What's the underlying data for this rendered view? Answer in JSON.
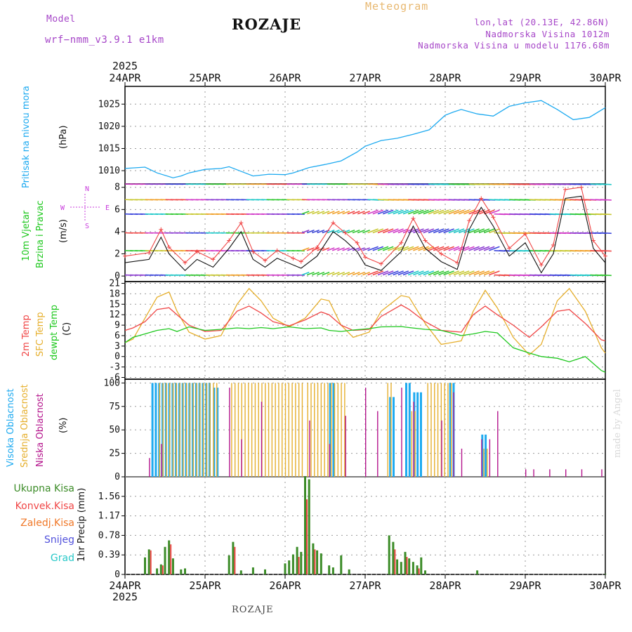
{
  "header": {
    "model_label": "Model",
    "model_name": "wrf−nmm_v3.9.1  e1km",
    "station": "ROZAJE",
    "meteogram": "Meteogram",
    "coords": "lon,lat (20.13E, 42.86N)",
    "elevation": "Nadmorska Visina 1012m",
    "model_elevation": "Nadmorska Visina u modelu 1176.68m",
    "year_top": "2025",
    "year_bottom": "2025",
    "footer": "ROZAJE",
    "credit": "made by Angel"
  },
  "colors": {
    "pressure": "#1eaaf0",
    "temp2m": "#f04646",
    "sfc_temp": "#e6af2d",
    "dewpoint": "#1ec81e",
    "high_cloud": "#1eaaf0",
    "mid_cloud": "#e6af2d",
    "low_cloud": "#b4148c",
    "total_precip": "#3c8c28",
    "conv_precip": "#f04646",
    "freezing": "#f07828",
    "snow": "#5050dc",
    "hail": "#28c8c8",
    "wind_max": "#f04646",
    "wind_speed": "#111111",
    "wind_axis": "#c83cdc"
  },
  "panel_labels": {
    "pressure": [
      "Pritisak na nivou mora",
      "(hPa)"
    ],
    "wind": [
      "10m Vjetar",
      "Brzina i Pravac",
      "(m/s)"
    ],
    "wind_compass": [
      "N",
      "W",
      "E",
      "S"
    ],
    "temp": [
      "2m Temp",
      "SFC Temp",
      "dewpt Temp",
      "(C)"
    ],
    "cloud": [
      "Visoka Oblacnost",
      "Srednja Oblacnost",
      "Niska Oblacnost",
      "(%)"
    ],
    "precip_legend": [
      "Ukupna Kisa",
      "Konvek.Kisa",
      "Zaledj.Kisa",
      "Snijeg",
      "Grad"
    ],
    "precip": [
      "1hr Precip (mm)"
    ]
  },
  "chart_data": [
    {
      "type": "line",
      "panel": "pressure",
      "ylabel": "(hPa)",
      "x_days": [
        "24APR",
        "25APR",
        "26APR",
        "27APR",
        "28APR",
        "29APR",
        "30APR"
      ],
      "yticks": [
        1010,
        1015,
        1020,
        1025
      ],
      "ylim": [
        1007,
        1029
      ],
      "x": [
        0,
        0.25,
        0.4,
        0.6,
        0.7,
        0.8,
        1.0,
        1.2,
        1.3,
        1.5,
        1.6,
        1.8,
        2.0,
        2.1,
        2.3,
        2.5,
        2.7,
        2.9,
        3.0,
        3.2,
        3.4,
        3.6,
        3.8,
        4.0,
        4.1,
        4.2,
        4.4,
        4.6,
        4.8,
        5.0,
        5.2,
        5.4,
        5.6,
        5.8,
        6.0
      ],
      "series": [
        {
          "values": [
            1010.5,
            1010.8,
            1009.5,
            1008.4,
            1008.8,
            1009.5,
            1010.3,
            1010.5,
            1010.9,
            1009.5,
            1008.8,
            1009.2,
            1009.1,
            1009.5,
            1010.7,
            1011.4,
            1012.2,
            1014.2,
            1015.5,
            1016.8,
            1017.3,
            1018.2,
            1019.2,
            1022.5,
            1023.2,
            1023.8,
            1022.8,
            1022.3,
            1024.5,
            1025.3,
            1025.8,
            1023.8,
            1021.5,
            1022.0,
            1024.2
          ]
        }
      ]
    },
    {
      "type": "line",
      "panel": "wind",
      "ylabel": "(m/s)",
      "yticks": [
        0,
        2,
        4,
        6,
        8
      ],
      "ylim": [
        -0.5,
        8.3
      ],
      "x": [
        0,
        0.3,
        0.45,
        0.55,
        0.75,
        0.9,
        1.1,
        1.3,
        1.45,
        1.6,
        1.75,
        1.9,
        2.1,
        2.2,
        2.4,
        2.6,
        2.75,
        2.9,
        3.0,
        3.2,
        3.45,
        3.6,
        3.75,
        3.95,
        4.15,
        4.3,
        4.45,
        4.6,
        4.8,
        5.0,
        5.2,
        5.35,
        5.5,
        5.7,
        5.85,
        6.0
      ],
      "series": [
        {
          "name": "",
          "values": [
            1.2,
            1.5,
            3.5,
            2.0,
            0.5,
            1.5,
            0.8,
            2.5,
            4.0,
            1.5,
            0.8,
            1.6,
            1.0,
            0.7,
            1.8,
            4.0,
            3.2,
            2.2,
            1.0,
            0.5,
            2.2,
            4.5,
            2.5,
            1.3,
            0.6,
            4.2,
            6.2,
            4.5,
            1.8,
            3.0,
            0.3,
            2.0,
            7.0,
            7.2,
            2.5,
            1.2
          ]
        },
        {
          "name": "",
          "values": [
            1.8,
            2.1,
            4.2,
            2.6,
            1.2,
            2.2,
            1.5,
            3.2,
            4.8,
            2.2,
            1.4,
            2.3,
            1.6,
            1.3,
            2.6,
            4.8,
            3.9,
            3.0,
            1.7,
            1.1,
            3.0,
            5.2,
            3.2,
            2.0,
            1.2,
            5.0,
            7.0,
            5.3,
            2.5,
            3.8,
            1.0,
            2.8,
            7.8,
            8.0,
            3.2,
            1.8
          ]
        }
      ],
      "barb_rows": [
        0.1,
        2.3,
        3.9,
        5.6,
        6.9,
        8.3
      ]
    },
    {
      "type": "line",
      "panel": "temp",
      "ylabel": "(C)",
      "yticks": [
        -6,
        -3,
        0,
        3,
        6,
        9,
        12,
        15,
        18,
        21
      ],
      "ylim": [
        -6.5,
        21.5
      ],
      "x": [
        0,
        0.1,
        0.25,
        0.4,
        0.55,
        0.65,
        0.8,
        1.0,
        1.2,
        1.4,
        1.55,
        1.7,
        1.85,
        2.05,
        2.25,
        2.45,
        2.55,
        2.7,
        2.85,
        3.05,
        3.2,
        3.45,
        3.55,
        3.75,
        3.95,
        4.2,
        4.35,
        4.5,
        4.65,
        4.85,
        5.05,
        5.2,
        5.4,
        5.55,
        5.75,
        5.95,
        6.0
      ],
      "series": [
        {
          "name": "2m Temp",
          "values": [
            7.5,
            8.2,
            10.0,
            13.5,
            14.0,
            12.0,
            9.0,
            7.2,
            7.5,
            13.0,
            14.5,
            12.5,
            10.0,
            8.8,
            10.5,
            12.8,
            12.0,
            9.0,
            7.5,
            7.8,
            11.5,
            14.8,
            13.5,
            10.0,
            7.5,
            7.0,
            12.0,
            14.5,
            12.0,
            9.0,
            5.5,
            8.5,
            13.0,
            13.5,
            9.5,
            4.8,
            4.5
          ]
        },
        {
          "name": "SFC Temp",
          "values": [
            4.0,
            5.0,
            11.0,
            17.0,
            18.5,
            13.0,
            7.0,
            5.0,
            6.0,
            15.0,
            19.5,
            16.0,
            11.0,
            8.5,
            11.0,
            16.5,
            16.0,
            9.0,
            5.5,
            7.0,
            13.0,
            17.5,
            17.0,
            9.5,
            3.5,
            4.5,
            13.0,
            19.0,
            14.0,
            5.5,
            0.5,
            3.5,
            16.0,
            19.5,
            13.0,
            2.5,
            1.0
          ]
        },
        {
          "name": "dewpt Temp",
          "values": [
            4.0,
            5.5,
            6.5,
            7.5,
            8.0,
            7.2,
            8.5,
            7.5,
            7.8,
            8.2,
            8.0,
            8.3,
            8.0,
            8.5,
            8.0,
            8.2,
            7.5,
            7.2,
            7.6,
            8.0,
            8.5,
            8.6,
            8.3,
            7.8,
            7.5,
            6.0,
            6.5,
            7.2,
            6.8,
            2.5,
            1.0,
            0.0,
            -0.5,
            -1.5,
            0.0,
            -4.0,
            -4.5
          ]
        }
      ]
    },
    {
      "type": "bar",
      "panel": "cloud",
      "ylabel": "(%)",
      "yticks": [
        0,
        25,
        50,
        75,
        100
      ],
      "ylim": [
        0,
        104
      ],
      "series": [
        {
          "name": "Visoka Oblacnost",
          "spans": [
            [
              0.33,
              1.05,
              100
            ],
            [
              1.1,
              1.15,
              95
            ],
            [
              2.55,
              2.6,
              100
            ],
            [
              3.3,
              3.35,
              85
            ],
            [
              3.5,
              3.55,
              100
            ],
            [
              3.6,
              3.7,
              90
            ],
            [
              4.05,
              4.1,
              100
            ],
            [
              4.45,
              4.5,
              45
            ]
          ]
        },
        {
          "name": "Srednja Oblacnost",
          "spans": [
            [
              0.4,
              1.15,
              100
            ],
            [
              1.3,
              2.2,
              100
            ],
            [
              2.25,
              2.75,
              100
            ],
            [
              3.25,
              3.3,
              100
            ],
            [
              3.55,
              3.6,
              70
            ],
            [
              3.75,
              4.05,
              100
            ],
            [
              4.45,
              4.5,
              30
            ]
          ]
        },
        {
          "name": "Niska Oblacnost",
          "x": [
            0.3,
            0.45,
            1.3,
            1.45,
            1.7,
            2.3,
            2.55,
            2.75,
            3.0,
            3.15,
            3.45,
            3.6,
            3.95,
            4.1,
            4.2,
            4.45,
            4.55,
            4.65,
            5.0,
            5.1,
            5.3,
            5.5,
            5.7,
            5.95
          ],
          "values": [
            20,
            35,
            95,
            40,
            80,
            60,
            35,
            65,
            95,
            70,
            95,
            80,
            60,
            90,
            30,
            40,
            40,
            70,
            8,
            8,
            8,
            8,
            8,
            8
          ]
        }
      ]
    },
    {
      "type": "bar",
      "panel": "precip",
      "ylabel": "1hr Precip (mm)",
      "yticks": [
        0,
        0.39,
        0.78,
        1.17,
        1.56
      ],
      "ylim": [
        0,
        1.95
      ],
      "series": [
        {
          "name": "Ukupna Kisa",
          "x": [
            0.25,
            0.3,
            0.4,
            0.45,
            0.5,
            0.55,
            0.6,
            0.7,
            0.75,
            1.3,
            1.35,
            1.45,
            1.6,
            1.75,
            2.0,
            2.05,
            2.1,
            2.15,
            2.2,
            2.25,
            2.3,
            2.35,
            2.4,
            2.45,
            2.55,
            2.6,
            2.7,
            2.8,
            3.3,
            3.35,
            3.4,
            3.45,
            3.5,
            3.55,
            3.6,
            3.65,
            3.7,
            3.75,
            4.4,
            6.0
          ],
          "values": [
            0.34,
            0.5,
            0.12,
            0.2,
            0.55,
            0.68,
            0.32,
            0.1,
            0.12,
            0.38,
            0.65,
            0.08,
            0.14,
            0.1,
            0.22,
            0.28,
            0.4,
            0.55,
            0.45,
            1.96,
            1.9,
            0.62,
            0.48,
            0.42,
            0.18,
            0.14,
            0.38,
            0.1,
            0.78,
            0.65,
            0.3,
            0.25,
            0.45,
            0.32,
            0.25,
            0.18,
            0.34,
            0.08,
            0.08,
            0.01
          ]
        },
        {
          "name": "Konvek.Kisa",
          "x": [
            0.3,
            0.45,
            0.55,
            1.35,
            2.15,
            2.25,
            2.35,
            3.35,
            3.5,
            3.65
          ],
          "values": [
            0.48,
            0.18,
            0.6,
            0.55,
            0.35,
            1.5,
            0.5,
            0.5,
            0.35,
            0.12
          ]
        }
      ]
    }
  ]
}
